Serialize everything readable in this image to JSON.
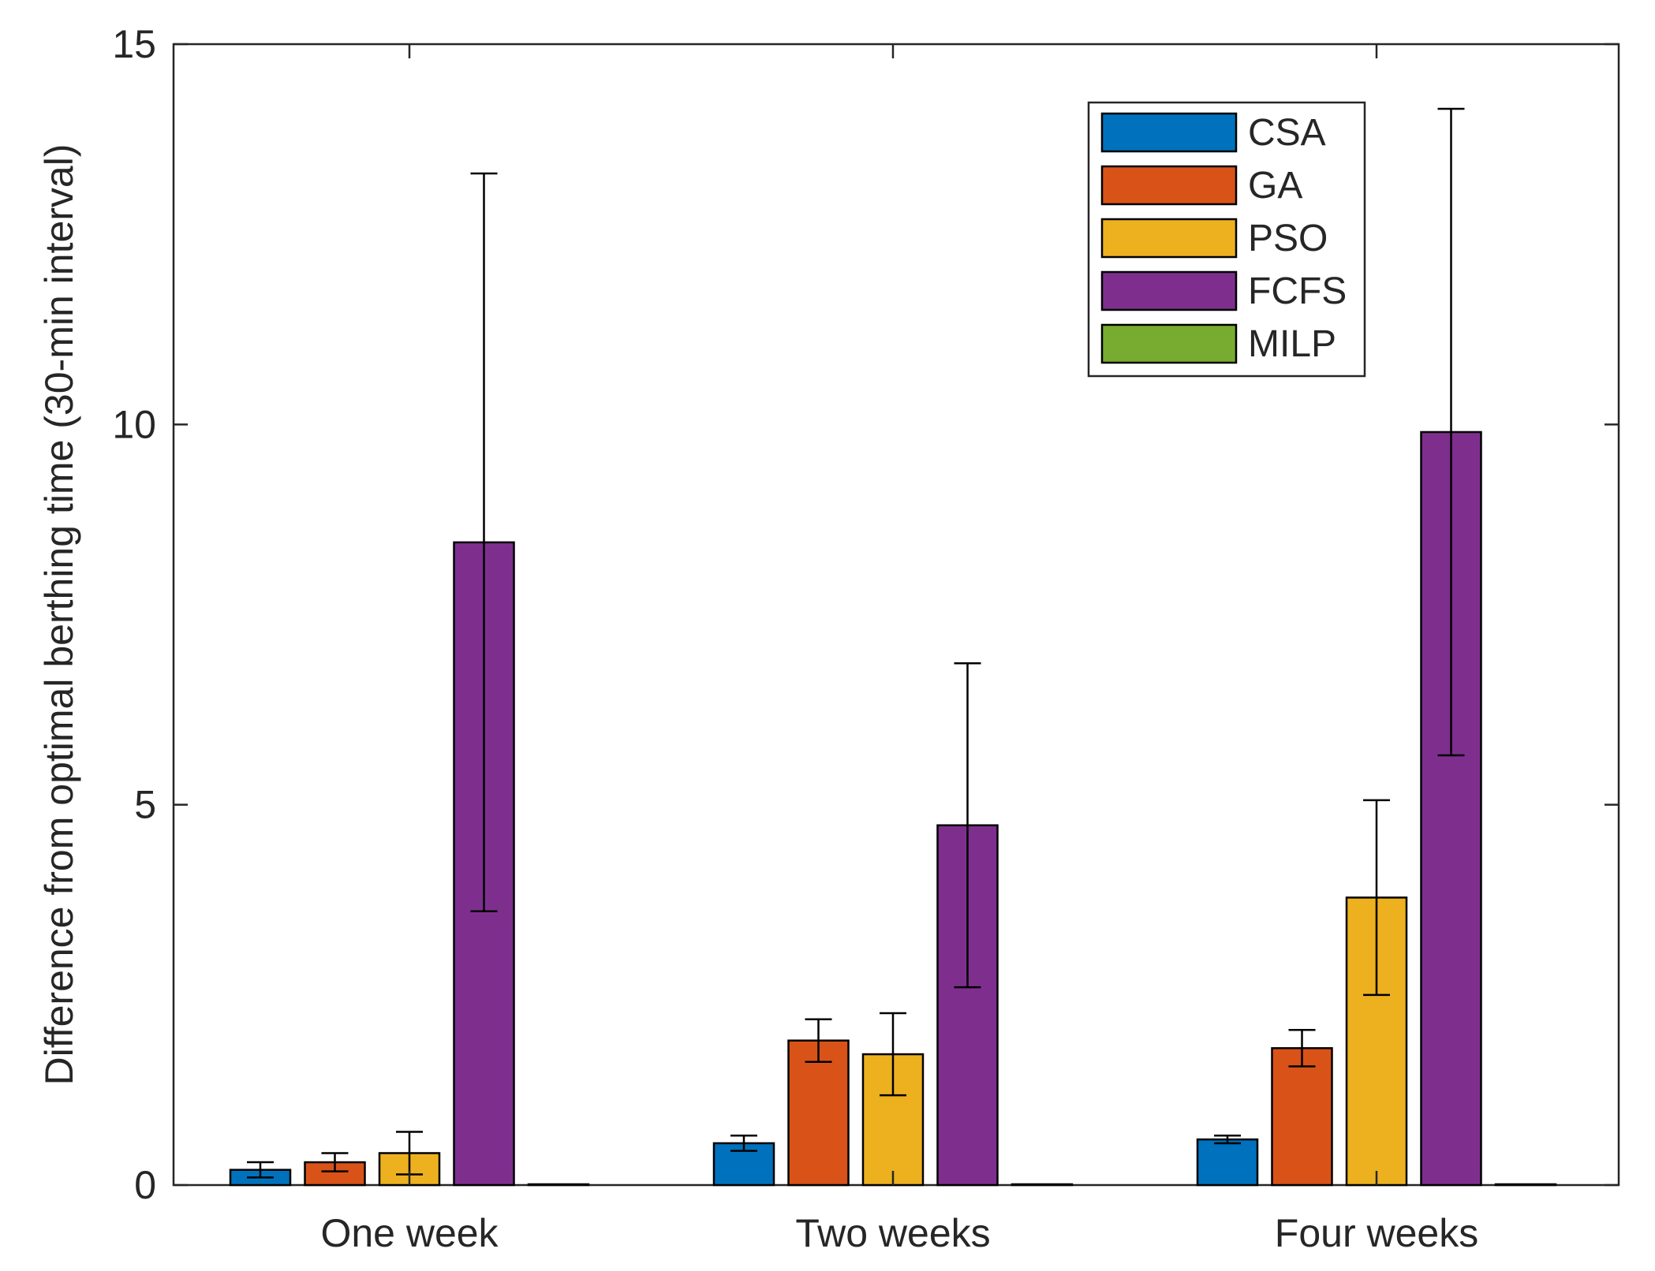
{
  "chart_data": {
    "type": "bar",
    "title": "",
    "xlabel": "",
    "ylabel": "Difference from optimal berthing time (30-min interval)",
    "ylim": [
      0,
      15
    ],
    "yticks": [
      0,
      5,
      10,
      15
    ],
    "grid": false,
    "legend_position": "top-right",
    "categories": [
      "One week",
      "Two weeks",
      "Four weeks"
    ],
    "series": [
      {
        "name": "CSA",
        "color": "#0072BD",
        "values": [
          0.2,
          0.55,
          0.6
        ],
        "errors": [
          0.1,
          0.1,
          0.05
        ]
      },
      {
        "name": "GA",
        "color": "#D95319",
        "values": [
          0.3,
          1.9,
          1.8
        ],
        "errors": [
          0.12,
          0.28,
          0.24
        ]
      },
      {
        "name": "PSO",
        "color": "#EDB120",
        "values": [
          0.42,
          1.72,
          3.78
        ],
        "errors": [
          0.28,
          0.54,
          1.28
        ]
      },
      {
        "name": "FCFS",
        "color": "#7E2F8E",
        "values": [
          8.45,
          4.73,
          9.9
        ],
        "errors": [
          4.85,
          2.13,
          4.25
        ]
      },
      {
        "name": "MILP",
        "color": "#77AC30",
        "values": [
          0,
          0,
          0
        ],
        "errors": [
          0,
          0,
          0
        ]
      }
    ]
  }
}
